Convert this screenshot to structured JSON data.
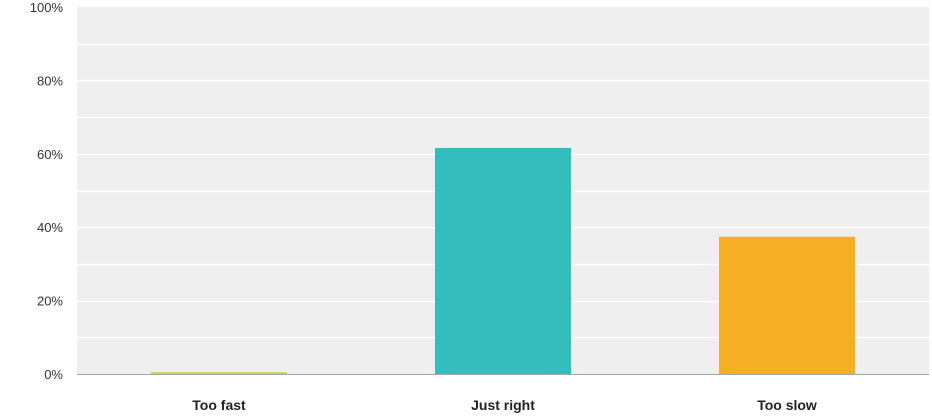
{
  "chart_data": {
    "type": "bar",
    "categories": [
      "Too fast",
      "Just right",
      "Too slow"
    ],
    "values": [
      0.5,
      61.6,
      37.4
    ],
    "colors": [
      "#c8d15a",
      "#33bdbd",
      "#f6ae22"
    ],
    "ylim": [
      0,
      100
    ],
    "yticks": [
      0,
      20,
      40,
      60,
      80,
      100
    ],
    "ytick_labels": [
      "0%",
      "20%",
      "40%",
      "60%",
      "80%",
      "100%"
    ],
    "grid": true,
    "title": "",
    "xlabel": "",
    "ylabel": "",
    "background_color": "#efefef",
    "grid_color": "#ffffff",
    "axis_color": "#a6a6a6"
  }
}
